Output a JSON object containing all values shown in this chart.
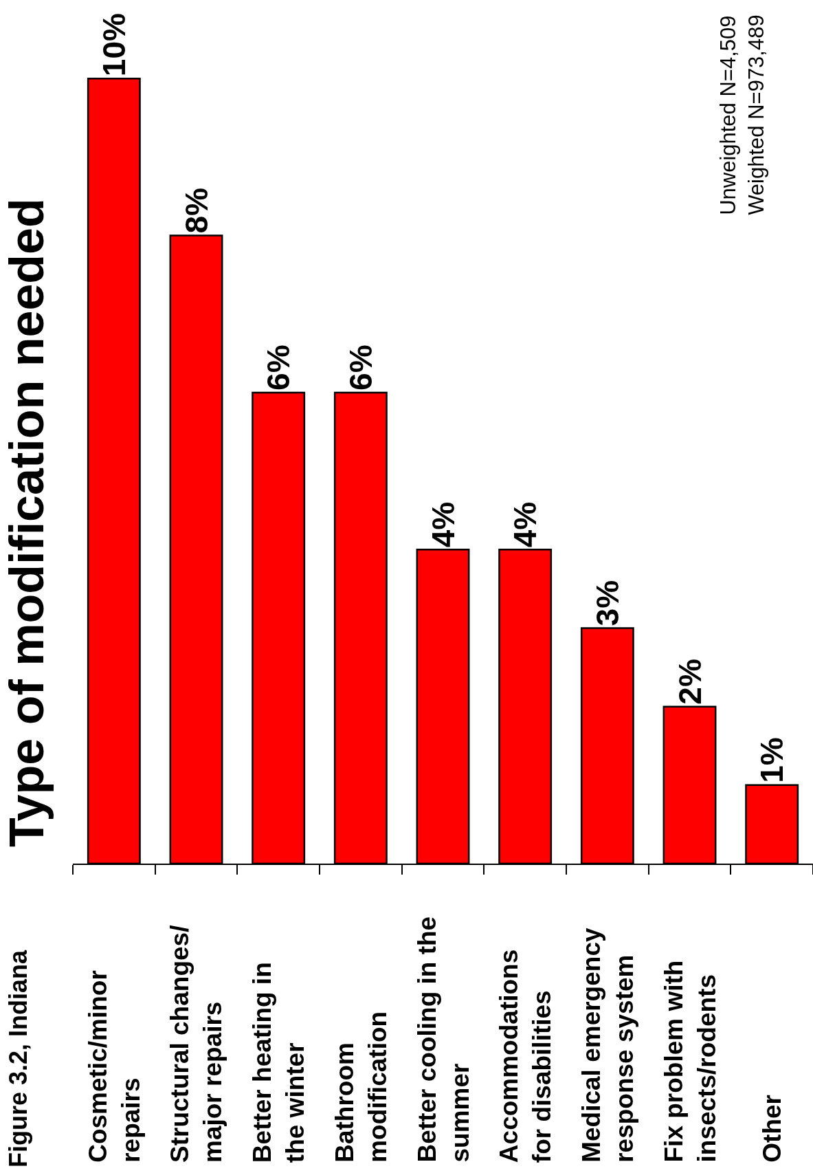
{
  "chart_data": {
    "type": "bar",
    "title": "Type of modification needed",
    "categories": [
      "Cosmetic/minor\nrepairs",
      "Structural changes/\nmajor repairs",
      "Better heating in\nthe winter",
      "Bathroom\nmodification",
      "Better cooling in the\nsummer",
      "Accommodations\nfor disabilities",
      "Medical emergency\nresponse system",
      "Fix problem with\ninsects/rodents",
      "Other"
    ],
    "values": [
      10,
      8,
      6,
      6,
      4,
      4,
      3,
      2,
      1
    ],
    "color": "#ff0000",
    "value_labels": [
      "10%",
      "8%",
      "6%",
      "6%",
      "4%",
      "4%",
      "3%",
      "2%",
      "1%"
    ],
    "tick_labels": "x",
    "annotations": [
      "Figure 3.2, Indiana",
      "Unweighted N=4,509\nWeighted N=973,489"
    ]
  }
}
